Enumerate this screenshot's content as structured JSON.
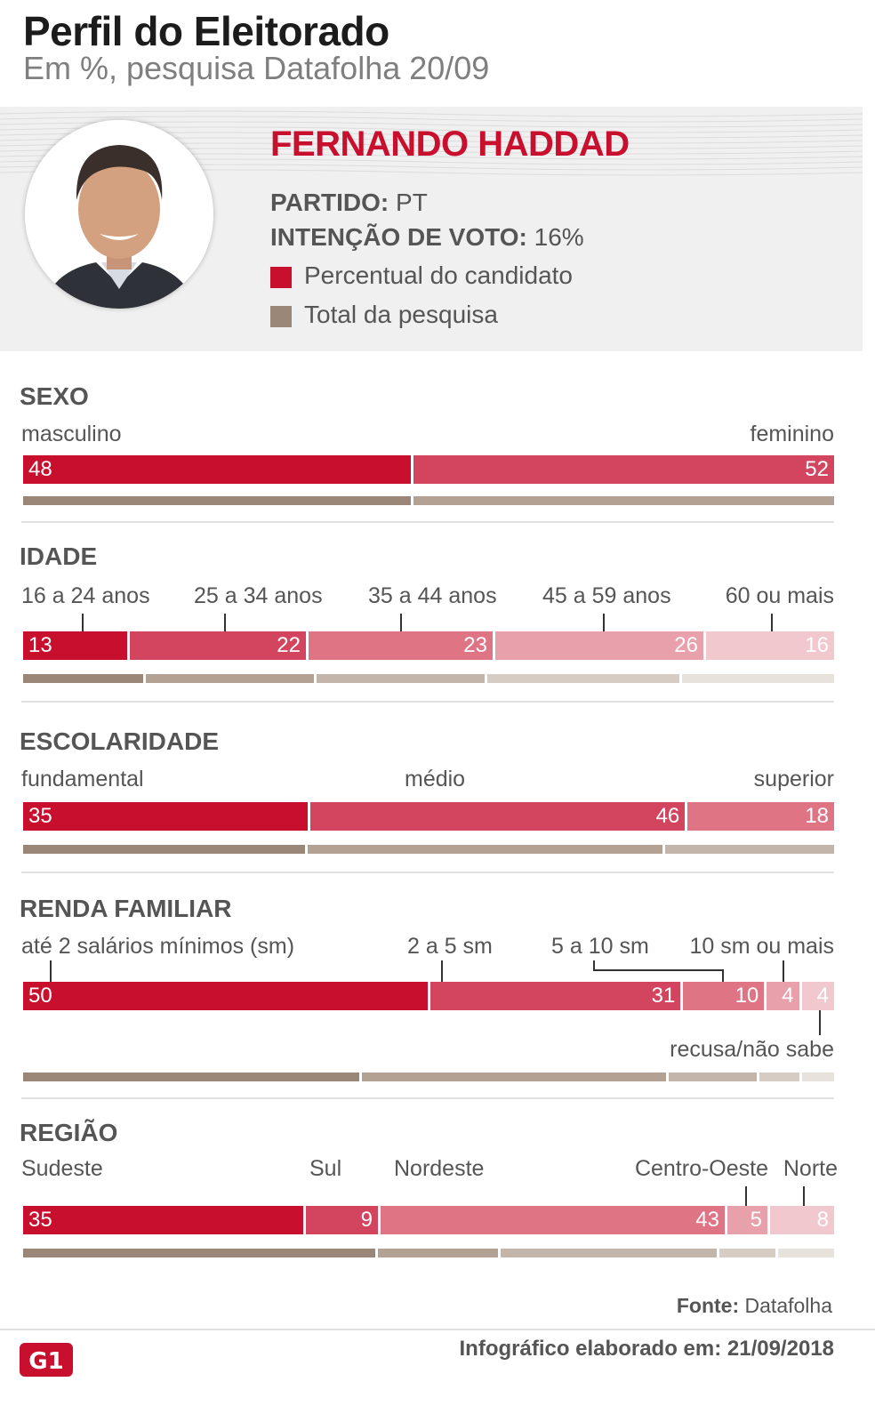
{
  "header": {
    "title": "Perfil do Eleitorado",
    "subtitle": "Em %, pesquisa Datafolha 20/09"
  },
  "candidate": {
    "name": "FERNANDO HADDAD",
    "party_label": "PARTIDO:",
    "party": "PT",
    "vote_label": "INTENÇÃO DE VOTO:",
    "vote": "16%"
  },
  "legend": [
    {
      "label": "Percentual do candidato",
      "color": "#c8102e"
    },
    {
      "label": "Total da pesquisa",
      "color": "#9b8778"
    }
  ],
  "footer": {
    "source_label": "Fonte:",
    "source": "Datafolha",
    "credit": "Infográfico elaborado em: 21/09/2018",
    "logo": "G1"
  },
  "chart_data": [
    {
      "type": "bar",
      "title": "SEXO",
      "categories": [
        "masculino",
        "feminino"
      ],
      "series": [
        {
          "name": "Percentual do candidato",
          "values": [
            48,
            52
          ]
        },
        {
          "name": "Total da pesquisa",
          "values": [
            48,
            52
          ]
        }
      ],
      "colors": [
        "#c8102e",
        "#d3455f"
      ],
      "total_colors": [
        "#9b8778",
        "#b3a294"
      ]
    },
    {
      "type": "bar",
      "title": "IDADE",
      "categories": [
        "16 a 24 anos",
        "25 a 34 anos",
        "35 a 44 anos",
        "45 a 59 anos",
        "60 ou mais"
      ],
      "series": [
        {
          "name": "Percentual do candidato",
          "values": [
            13,
            22,
            23,
            26,
            16
          ]
        },
        {
          "name": "Total da pesquisa",
          "values": [
            15,
            21,
            21,
            24,
            19
          ]
        }
      ],
      "colors": [
        "#c8102e",
        "#d3455f",
        "#df7485",
        "#e8a0ab",
        "#f2c8cf"
      ],
      "total_colors": [
        "#9b8778",
        "#b3a294",
        "#c3b5aa",
        "#d6ccc4",
        "#e8e2dd"
      ]
    },
    {
      "type": "bar",
      "title": "ESCOLARIDADE",
      "categories": [
        "fundamental",
        "médio",
        "superior"
      ],
      "series": [
        {
          "name": "Percentual do candidato",
          "values": [
            35,
            46,
            18
          ]
        },
        {
          "name": "Total da pesquisa",
          "values": [
            35,
            44,
            21
          ]
        }
      ],
      "colors": [
        "#c8102e",
        "#d3455f",
        "#df7485"
      ],
      "total_colors": [
        "#9b8778",
        "#b3a294",
        "#c3b5aa"
      ]
    },
    {
      "type": "bar",
      "title": "RENDA FAMILIAR",
      "categories": [
        "até 2 salários mínimos (sm)",
        "2 a 5 sm",
        "5 a 10 sm",
        "10 sm ou mais",
        "recusa/não sabe"
      ],
      "series": [
        {
          "name": "Percentual do candidato",
          "values": [
            50,
            31,
            10,
            4,
            4
          ]
        },
        {
          "name": "Total da pesquisa",
          "values": [
            42,
            38,
            11,
            5,
            4
          ]
        }
      ],
      "colors": [
        "#c8102e",
        "#d3455f",
        "#df7485",
        "#e8a0ab",
        "#f2c8cf"
      ],
      "total_colors": [
        "#9b8778",
        "#b3a294",
        "#c3b5aa",
        "#d6ccc4",
        "#e8e2dd"
      ]
    },
    {
      "type": "bar",
      "title": "REGIÃO",
      "categories": [
        "Sudeste",
        "Sul",
        "Nordeste",
        "Centro-Oeste",
        "Norte"
      ],
      "series": [
        {
          "name": "Percentual do candidato",
          "values": [
            35,
            9,
            43,
            5,
            8
          ]
        },
        {
          "name": "Total da pesquisa",
          "values": [
            44,
            15,
            27,
            7,
            7
          ]
        }
      ],
      "colors": [
        "#c8102e",
        "#d3455f",
        "#df7485",
        "#e8a0ab",
        "#f2c8cf"
      ],
      "total_colors": [
        "#9b8778",
        "#b3a294",
        "#c3b5aa",
        "#d6ccc4",
        "#e8e2dd"
      ]
    }
  ]
}
